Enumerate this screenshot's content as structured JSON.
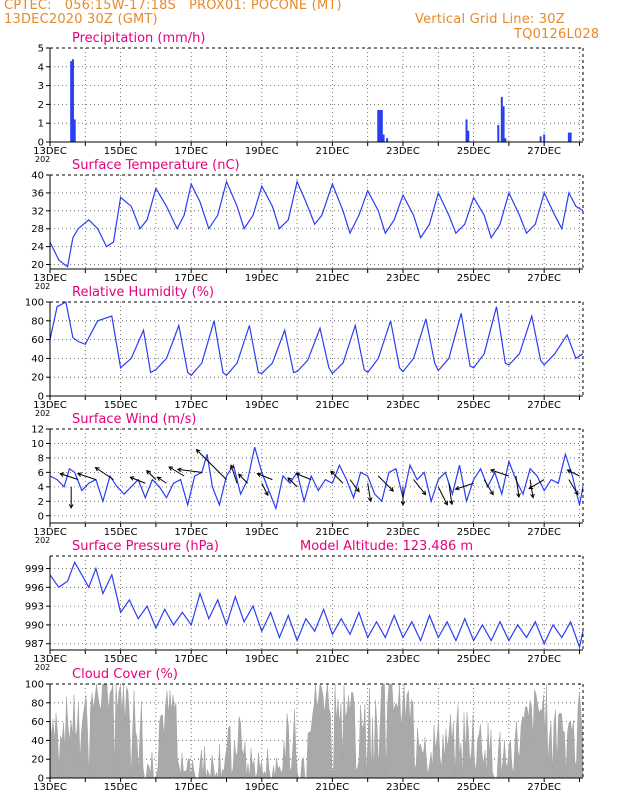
{
  "header": {
    "line1": "CPTEC:   056:15W-17:18S   PROX01: POCONE (MT)",
    "line2": "13DEC2020 30Z (GMT)",
    "grid_note": "Vertical Grid Line: 30Z",
    "code": "TQ0126L028"
  },
  "colors": {
    "header": "#e8892a",
    "title": "#e6007e",
    "series": "#2b3df2",
    "cloud": "#a9a9a9",
    "arrow": "#000000"
  },
  "x_axis": {
    "unit": "day of December 2020",
    "range": [
      13.0,
      28.1
    ],
    "tick_labels": [
      "13DEC",
      "15DEC",
      "17DEC",
      "19DEC",
      "21DEC",
      "23DEC",
      "25DEC",
      "27DEC"
    ],
    "tick_days": [
      13,
      15,
      17,
      19,
      21,
      23,
      25,
      27
    ],
    "corner_label": "202"
  },
  "chart_data": [
    {
      "id": "precip",
      "type": "bar",
      "title": "Precipitation (mm/h)",
      "ylim": [
        0,
        5
      ],
      "yticks": [
        0,
        1,
        2,
        3,
        4,
        5
      ],
      "x": [
        13.6,
        13.65,
        13.7,
        22.3,
        22.35,
        22.4,
        22.45,
        22.55,
        24.8,
        24.85,
        25.7,
        25.8,
        25.85,
        25.9,
        26.9,
        27.0,
        27.7,
        27.75
      ],
      "values": [
        4.3,
        4.4,
        1.2,
        1.7,
        1.7,
        1.7,
        0.4,
        0.2,
        1.2,
        0.6,
        0.9,
        2.4,
        1.9,
        0.2,
        0.3,
        0.4,
        0.5,
        0.5
      ]
    },
    {
      "id": "temp",
      "type": "line",
      "title": "Surface Temperature (nC)",
      "ylim": [
        19,
        40
      ],
      "yticks": [
        20,
        24,
        28,
        32,
        36,
        40
      ],
      "x": [
        13.0,
        13.25,
        13.5,
        13.65,
        13.8,
        14.1,
        14.35,
        14.6,
        14.8,
        15.0,
        15.3,
        15.55,
        15.75,
        16.0,
        16.3,
        16.6,
        16.8,
        17.0,
        17.25,
        17.5,
        17.75,
        18.0,
        18.3,
        18.5,
        18.75,
        19.0,
        19.3,
        19.5,
        19.75,
        20.0,
        20.25,
        20.5,
        20.7,
        21.0,
        21.3,
        21.5,
        21.75,
        22.0,
        22.3,
        22.5,
        22.75,
        23.0,
        23.3,
        23.5,
        23.75,
        24.0,
        24.3,
        24.5,
        24.75,
        25.0,
        25.3,
        25.5,
        25.75,
        26.0,
        26.3,
        26.5,
        26.75,
        27.0,
        27.3,
        27.5,
        27.7,
        27.9,
        28.1
      ],
      "values": [
        25,
        21,
        19.5,
        26,
        28,
        30,
        28,
        24,
        25,
        35,
        33,
        28,
        30,
        37,
        33,
        28,
        31,
        38,
        34,
        28,
        31,
        38.5,
        33,
        28,
        31,
        37.5,
        33,
        28,
        30,
        38.5,
        34,
        29,
        31,
        38,
        32,
        27,
        31,
        36.5,
        32,
        27,
        30,
        35.5,
        31,
        26,
        29,
        36,
        31,
        27,
        29,
        35,
        31,
        26,
        29,
        36,
        31,
        27,
        29,
        36,
        31,
        28,
        36,
        33,
        32
      ]
    },
    {
      "id": "rh",
      "type": "line",
      "title": "Relative Humidity (%)",
      "ylim": [
        0,
        100
      ],
      "yticks": [
        0,
        20,
        40,
        60,
        80,
        100
      ],
      "x": [
        13.0,
        13.2,
        13.45,
        13.65,
        13.8,
        14.0,
        14.35,
        14.75,
        15.0,
        15.3,
        15.65,
        15.85,
        16.0,
        16.3,
        16.65,
        16.9,
        17.0,
        17.3,
        17.65,
        17.9,
        18.0,
        18.3,
        18.65,
        18.9,
        19.0,
        19.3,
        19.65,
        19.9,
        20.0,
        20.3,
        20.65,
        20.9,
        21.0,
        21.3,
        21.65,
        21.9,
        22.0,
        22.3,
        22.65,
        22.9,
        23.0,
        23.3,
        23.65,
        23.9,
        24.0,
        24.3,
        24.65,
        24.9,
        25.0,
        25.3,
        25.65,
        25.9,
        26.0,
        26.3,
        26.65,
        26.9,
        27.0,
        27.3,
        27.65,
        27.9,
        28.1
      ],
      "values": [
        60,
        95,
        100,
        62,
        58,
        55,
        80,
        85,
        30,
        40,
        70,
        25,
        28,
        40,
        75,
        25,
        22,
        35,
        80,
        25,
        22,
        35,
        75,
        25,
        24,
        35,
        70,
        25,
        26,
        38,
        72,
        30,
        24,
        35,
        75,
        28,
        25,
        40,
        80,
        30,
        26,
        40,
        82,
        35,
        27,
        40,
        88,
        32,
        30,
        45,
        95,
        35,
        33,
        45,
        85,
        38,
        33,
        45,
        65,
        40,
        45
      ]
    },
    {
      "id": "wind",
      "type": "line",
      "title": "Surface Wind (m/s)",
      "ylim": [
        -1,
        12
      ],
      "yticks": [
        0,
        2,
        4,
        6,
        8,
        10,
        12
      ],
      "x": [
        13.0,
        13.2,
        13.4,
        13.55,
        13.7,
        13.9,
        14.1,
        14.3,
        14.5,
        14.7,
        14.9,
        15.1,
        15.3,
        15.5,
        15.7,
        15.9,
        16.1,
        16.3,
        16.5,
        16.7,
        16.9,
        17.1,
        17.3,
        17.45,
        17.6,
        17.8,
        18.0,
        18.2,
        18.4,
        18.6,
        18.8,
        19.0,
        19.2,
        19.4,
        19.6,
        19.8,
        20.0,
        20.2,
        20.4,
        20.6,
        20.8,
        21.0,
        21.2,
        21.4,
        21.6,
        21.8,
        22.0,
        22.2,
        22.4,
        22.6,
        22.8,
        23.0,
        23.2,
        23.4,
        23.6,
        23.8,
        24.0,
        24.2,
        24.4,
        24.6,
        24.8,
        25.0,
        25.2,
        25.4,
        25.6,
        25.8,
        26.0,
        26.2,
        26.4,
        26.6,
        26.8,
        27.0,
        27.2,
        27.4,
        27.6,
        27.8,
        28.0,
        28.1
      ],
      "values": [
        5.5,
        5.0,
        4.0,
        6.5,
        6.0,
        3.5,
        4.5,
        5.0,
        2.0,
        5.5,
        4.0,
        3.0,
        4.0,
        5.0,
        2.5,
        5.0,
        4.0,
        2.5,
        4.5,
        5.0,
        1.5,
        5.5,
        6.0,
        8.5,
        4.0,
        1.5,
        5.5,
        7.0,
        3.0,
        5.0,
        9.5,
        6.0,
        3.5,
        1.0,
        5.5,
        4.5,
        6.0,
        2.0,
        5.5,
        3.5,
        5.0,
        4.5,
        7.0,
        5.0,
        2.5,
        6.0,
        5.5,
        3.0,
        2.0,
        6.0,
        6.5,
        2.5,
        7.0,
        5.0,
        6.0,
        2.0,
        5.0,
        6.0,
        3.0,
        7.0,
        2.0,
        5.0,
        6.5,
        4.0,
        6.0,
        3.0,
        7.5,
        5.0,
        3.0,
        6.5,
        5.5,
        3.5,
        5.0,
        4.5,
        8.5,
        5.5,
        1.5,
        4.0
      ],
      "arrows": [
        {
          "x": 13.6,
          "y": 4.0,
          "dx": 0,
          "dy": -0.35
        },
        {
          "x": 13.8,
          "y": 5.0,
          "dx": -0.3,
          "dy": 0.1
        },
        {
          "x": 14.3,
          "y": 5.0,
          "dx": -0.3,
          "dy": 0.1
        },
        {
          "x": 14.8,
          "y": 5.0,
          "dx": -0.3,
          "dy": 0.2
        },
        {
          "x": 15.7,
          "y": 4.5,
          "dx": -0.25,
          "dy": 0.1
        },
        {
          "x": 16.0,
          "y": 5.0,
          "dx": -0.15,
          "dy": 0.15
        },
        {
          "x": 16.3,
          "y": 4.5,
          "dx": -0.15,
          "dy": 0.1
        },
        {
          "x": 16.8,
          "y": 5.5,
          "dx": -0.25,
          "dy": 0.15
        },
        {
          "x": 17.3,
          "y": 6.0,
          "dx": -0.4,
          "dy": 0.05
        },
        {
          "x": 18.0,
          "y": 5.0,
          "dx": -0.5,
          "dy": 0.5
        },
        {
          "x": 18.3,
          "y": 4.5,
          "dx": -0.1,
          "dy": 0.3
        },
        {
          "x": 18.6,
          "y": 4.5,
          "dx": -0.15,
          "dy": 0.15
        },
        {
          "x": 19.0,
          "y": 4.5,
          "dx": 0.1,
          "dy": -0.2
        },
        {
          "x": 19.3,
          "y": 5.0,
          "dx": -0.25,
          "dy": 0.1
        },
        {
          "x": 20.0,
          "y": 4.0,
          "dx": -0.15,
          "dy": 0.15
        },
        {
          "x": 20.4,
          "y": 5.0,
          "dx": -0.25,
          "dy": 0.1
        },
        {
          "x": 21.3,
          "y": 4.5,
          "dx": -0.2,
          "dy": 0.2
        },
        {
          "x": 21.5,
          "y": 5.0,
          "dx": 0.15,
          "dy": -0.2
        },
        {
          "x": 22.0,
          "y": 4.5,
          "dx": 0.05,
          "dy": -0.3
        },
        {
          "x": 22.3,
          "y": 5.5,
          "dx": 0.25,
          "dy": -0.25
        },
        {
          "x": 23.0,
          "y": 4.0,
          "dx": 0,
          "dy": -0.3
        },
        {
          "x": 23.3,
          "y": 5.0,
          "dx": 0.2,
          "dy": -0.25
        },
        {
          "x": 24.0,
          "y": 4.0,
          "dx": 0.15,
          "dy": -0.3
        },
        {
          "x": 24.3,
          "y": 4.5,
          "dx": 0.05,
          "dy": -0.35
        },
        {
          "x": 25.0,
          "y": 4.5,
          "dx": -0.3,
          "dy": -0.1
        },
        {
          "x": 25.3,
          "y": 5.0,
          "dx": 0.15,
          "dy": -0.25
        },
        {
          "x": 26.0,
          "y": 5.5,
          "dx": -0.3,
          "dy": 0.1
        },
        {
          "x": 26.2,
          "y": 5.5,
          "dx": 0.05,
          "dy": -0.35
        },
        {
          "x": 26.6,
          "y": 5.0,
          "dx": 0.05,
          "dy": -0.3
        },
        {
          "x": 27.0,
          "y": 5.0,
          "dx": -0.25,
          "dy": -0.15
        },
        {
          "x": 27.7,
          "y": 5.0,
          "dx": 0.15,
          "dy": -0.25
        },
        {
          "x": 28.0,
          "y": 5.5,
          "dx": -0.2,
          "dy": 0.1
        }
      ]
    },
    {
      "id": "pres",
      "type": "line",
      "title": "Surface Pressure (hPa)",
      "note": "Model Altitude: 123.486 m",
      "ylim": [
        986,
        1001
      ],
      "yticks": [
        987,
        990,
        993,
        996,
        999
      ],
      "x": [
        13.0,
        13.25,
        13.5,
        13.7,
        13.9,
        14.1,
        14.3,
        14.5,
        14.75,
        15.0,
        15.25,
        15.5,
        15.75,
        16.0,
        16.25,
        16.5,
        16.75,
        17.0,
        17.25,
        17.5,
        17.75,
        18.0,
        18.25,
        18.5,
        18.75,
        19.0,
        19.25,
        19.5,
        19.75,
        20.0,
        20.25,
        20.5,
        20.75,
        21.0,
        21.25,
        21.5,
        21.75,
        22.0,
        22.25,
        22.5,
        22.75,
        23.0,
        23.25,
        23.5,
        23.75,
        24.0,
        24.25,
        24.5,
        24.75,
        25.0,
        25.25,
        25.5,
        25.75,
        26.0,
        26.25,
        26.5,
        26.75,
        27.0,
        27.25,
        27.5,
        27.75,
        28.0,
        28.1
      ],
      "values": [
        998,
        996,
        997,
        1000,
        998,
        996,
        999,
        995,
        998,
        992,
        994,
        991,
        993,
        989.5,
        992.5,
        990,
        992,
        990,
        995,
        991,
        994,
        990,
        994.5,
        990.5,
        993,
        989,
        992,
        988,
        991.5,
        987.5,
        991,
        989,
        992.5,
        988.5,
        991,
        988.5,
        992,
        988,
        990.5,
        988,
        991.5,
        988,
        990.5,
        987.5,
        991.5,
        988,
        990.5,
        987.5,
        991,
        987.5,
        990,
        987.5,
        990.5,
        987.5,
        990,
        988,
        990.5,
        987,
        990,
        988,
        990.5,
        986.5,
        989
      ]
    },
    {
      "id": "cloud",
      "type": "area",
      "title": "Cloud Cover (%)",
      "ylim": [
        0,
        100
      ],
      "yticks": [
        0,
        20,
        40,
        60,
        80,
        100
      ]
    }
  ]
}
